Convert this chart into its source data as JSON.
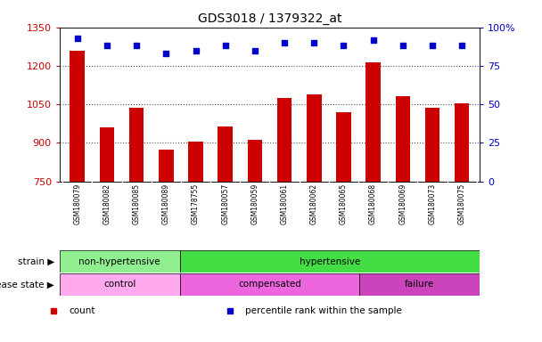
{
  "title": "GDS3018 / 1379322_at",
  "samples": [
    "GSM180079",
    "GSM180082",
    "GSM180085",
    "GSM180089",
    "GSM178755",
    "GSM180057",
    "GSM180059",
    "GSM180061",
    "GSM180062",
    "GSM180065",
    "GSM180068",
    "GSM180069",
    "GSM180073",
    "GSM180075"
  ],
  "counts": [
    1260,
    960,
    1035,
    875,
    905,
    965,
    910,
    1075,
    1090,
    1020,
    1215,
    1080,
    1035,
    1055
  ],
  "percentiles": [
    93,
    88,
    88,
    83,
    85,
    88,
    85,
    90,
    90,
    88,
    92,
    88,
    88,
    88
  ],
  "ylim_left": [
    750,
    1350
  ],
  "ylim_right": [
    0,
    100
  ],
  "yticks_left": [
    750,
    900,
    1050,
    1200,
    1350
  ],
  "yticks_right": [
    0,
    25,
    50,
    75,
    100
  ],
  "strain_groups": [
    {
      "label": "non-hypertensive",
      "start": 0,
      "end": 4,
      "color": "#90EE90"
    },
    {
      "label": "hypertensive",
      "start": 4,
      "end": 14,
      "color": "#44DD44"
    }
  ],
  "disease_groups": [
    {
      "label": "control",
      "start": 0,
      "end": 4,
      "color": "#FFAAEE"
    },
    {
      "label": "compensated",
      "start": 4,
      "end": 10,
      "color": "#EE66DD"
    },
    {
      "label": "failure",
      "start": 10,
      "end": 14,
      "color": "#CC44BB"
    }
  ],
  "bar_color": "#CC0000",
  "dot_color": "#0000CC",
  "legend": [
    "count",
    "percentile rank within the sample"
  ],
  "legend_colors": [
    "#CC0000",
    "#0000CC"
  ],
  "dotted_line_color": "#555555",
  "axis_color_left": "#CC0000",
  "axis_color_right": "#0000CC",
  "tick_area_bg": "#CCCCCC"
}
